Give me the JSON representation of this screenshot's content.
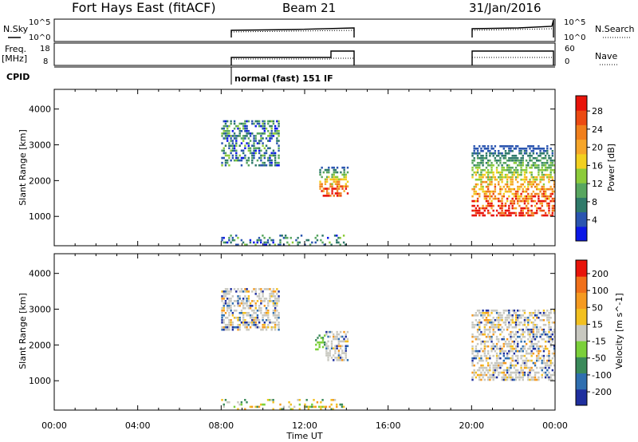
{
  "header": {
    "station": "Fort Hays East (fitACF)",
    "beam": "Beam 21",
    "date": "31/Jan/2016"
  },
  "top_panels": {
    "nsky_label": "N.Sky",
    "nsearch_label": "N.Search",
    "nsky_ticks": [
      "10^5",
      "10^0"
    ],
    "nsearch_ticks": [
      "10^5",
      "10^0"
    ],
    "freq_label": "Freq.",
    "freq_unit": "[MHz]",
    "freq_ticks": [
      "18",
      "8"
    ],
    "nave_label": "Nave",
    "nave_ticks": [
      "60",
      "0"
    ],
    "cpid_label": "CPID",
    "cpid_text": "normal (fast) 151 IF"
  },
  "chart_data": [
    {
      "type": "heatmap",
      "panel": "power",
      "ylabel": "Slant Range [km]",
      "xlabel": "",
      "xlim": [
        0,
        24
      ],
      "ylim": [
        180,
        4550
      ],
      "yticks": [
        1000,
        2000,
        3000,
        4000
      ],
      "colorbar": {
        "label": "Power [dB]",
        "ticks": [
          "4",
          "8",
          "12",
          "16",
          "20",
          "24",
          "28"
        ],
        "colors": [
          "#0b18e6",
          "#2a55b0",
          "#2f7a6a",
          "#58a65f",
          "#8ccb3a",
          "#f2d020",
          "#f6a62a",
          "#f07f1c",
          "#ec4a12",
          "#e8140a"
        ]
      },
      "echo_regions": [
        {
          "t": [
            8.0,
            10.8
          ],
          "range_km": [
            2400,
            3700
          ],
          "power_db": "4-16"
        },
        {
          "t": [
            12.7,
            14.1
          ],
          "range_km": [
            1550,
            2400
          ],
          "power_db": "12-28"
        },
        {
          "t": [
            8.0,
            14.0
          ],
          "range_km": [
            180,
            500
          ],
          "power_db": "4-12"
        },
        {
          "t": [
            20.0,
            24.0
          ],
          "range_km": [
            1000,
            3000
          ],
          "power_db": "4-28"
        }
      ]
    },
    {
      "type": "heatmap",
      "panel": "velocity",
      "ylabel": "Slant Range [km]",
      "xlabel": "Time UT",
      "xlim": [
        0,
        24
      ],
      "ylim": [
        180,
        4550
      ],
      "yticks": [
        1000,
        2000,
        3000,
        4000
      ],
      "xticks": [
        "00:00",
        "04:00",
        "08:00",
        "12:00",
        "16:00",
        "20:00",
        "00:00"
      ],
      "colorbar": {
        "label": "Velocity [m s^-1]",
        "ticks": [
          "200",
          "100",
          "50",
          "15",
          "-15",
          "-50",
          "-100",
          "-200"
        ],
        "colors": [
          "#1f2f9e",
          "#2f6fb0",
          "#3a8a5a",
          "#7bd03a",
          "#c8c8c0",
          "#f2c020",
          "#f59a20",
          "#f0701a",
          "#e8140a"
        ]
      },
      "echo_regions": [
        {
          "t": [
            8.0,
            10.8
          ],
          "range_km": [
            2400,
            3600
          ],
          "velocity": "-15 to 15"
        },
        {
          "t": [
            12.5,
            13.0
          ],
          "range_km": [
            1850,
            2300
          ],
          "velocity": "15 to 50"
        },
        {
          "t": [
            13.0,
            14.1
          ],
          "range_km": [
            1550,
            2400
          ],
          "velocity": "-15 to 15"
        },
        {
          "t": [
            8.0,
            14.0
          ],
          "range_km": [
            180,
            500
          ],
          "velocity": "-50 to -15"
        },
        {
          "t": [
            20.0,
            24.0
          ],
          "range_km": [
            1000,
            3000
          ],
          "velocity": "-15 to 15"
        }
      ]
    }
  ]
}
